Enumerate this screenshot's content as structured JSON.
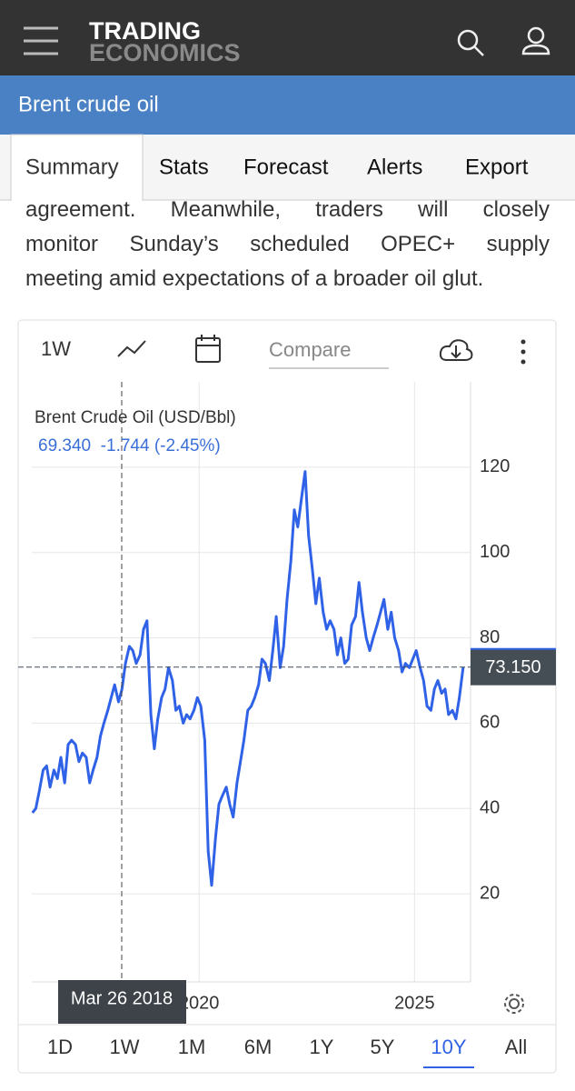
{
  "header": {
    "logo_top": "TRADING",
    "logo_bottom": "ECONOMICS"
  },
  "page_title": "Brent crude oil",
  "tabs": [
    "Summary",
    "Stats",
    "Forecast",
    "Alerts",
    "Export"
  ],
  "active_tab": 0,
  "paragraph_lines": [
    "agreement. Meanwhile, traders will closely",
    "monitor Sunday’s scheduled OPEC+ supply",
    "meeting amid expectations of a broader oil glut."
  ],
  "toolbar": {
    "interval": "1W",
    "compare_placeholder": "Compare"
  },
  "chart_data": {
    "type": "line",
    "quote": "69.340  -1.744 (-2.45%)",
    "x": [
      2016.13,
      2016.21,
      2016.29,
      2016.38,
      2016.46,
      2016.54,
      2016.63,
      2016.71,
      2016.79,
      2016.88,
      2016.96,
      2017.04,
      2017.13,
      2017.21,
      2017.29,
      2017.38,
      2017.46,
      2017.54,
      2017.63,
      2017.71,
      2017.79,
      2017.88,
      2017.96,
      2018.04,
      2018.13,
      2018.21,
      2018.29,
      2018.38,
      2018.46,
      2018.54,
      2018.63,
      2018.71,
      2018.79,
      2018.88,
      2018.96,
      2019.04,
      2019.13,
      2019.21,
      2019.29,
      2019.38,
      2019.46,
      2019.54,
      2019.63,
      2019.71,
      2019.79,
      2019.88,
      2019.96,
      2020.04,
      2020.13,
      2020.21,
      2020.29,
      2020.38,
      2020.46,
      2020.54,
      2020.63,
      2020.71,
      2020.79,
      2020.88,
      2020.96,
      2021.04,
      2021.13,
      2021.21,
      2021.29,
      2021.38,
      2021.46,
      2021.54,
      2021.63,
      2021.71,
      2021.79,
      2021.88,
      2021.96,
      2022.04,
      2022.13,
      2022.21,
      2022.29,
      2022.38,
      2022.46,
      2022.54,
      2022.63,
      2022.71,
      2022.79,
      2022.88,
      2022.96,
      2023.04,
      2023.13,
      2023.21,
      2023.29,
      2023.38,
      2023.46,
      2023.54,
      2023.63,
      2023.71,
      2023.79,
      2023.88,
      2023.96,
      2024.04,
      2024.13,
      2024.21,
      2024.29,
      2024.38,
      2024.46,
      2024.54,
      2024.63,
      2024.71,
      2024.79,
      2024.88,
      2024.96,
      2025.04,
      2025.13,
      2025.21,
      2025.29,
      2025.38,
      2025.46,
      2025.54,
      2025.63,
      2025.71,
      2025.79,
      2025.88,
      2025.96,
      2026.04,
      2026.13
    ],
    "series": [
      {
        "name": "Brent Crude Oil (USD/Bbl)",
        "color": "#2f62e6",
        "values": [
          39,
          40,
          44,
          49,
          50,
          45,
          49,
          47,
          52,
          46,
          55,
          56,
          55,
          51,
          53,
          52,
          46,
          49,
          52,
          57,
          60,
          63,
          66,
          69,
          65,
          68,
          74,
          78,
          77,
          74,
          76,
          82,
          84,
          62,
          54,
          61,
          66,
          68,
          73,
          70,
          63,
          64,
          60,
          62,
          61,
          63,
          66,
          64,
          56,
          30,
          22,
          33,
          41,
          43,
          45,
          41,
          38,
          46,
          51,
          56,
          63,
          64,
          66,
          69,
          75,
          74,
          70,
          77,
          85,
          73,
          78,
          89,
          98,
          110,
          106,
          113,
          119,
          104,
          96,
          88,
          94,
          86,
          82,
          84,
          82,
          76,
          80,
          74,
          75,
          83,
          85,
          93,
          86,
          80,
          77,
          80,
          83,
          86,
          89,
          82,
          86,
          80,
          77,
          72,
          74,
          73,
          75,
          77,
          73,
          70,
          64,
          63,
          68,
          70,
          67,
          68,
          62,
          63,
          61,
          66,
          73.15
        ]
      }
    ],
    "xlim": [
      2015.8,
      2026.3
    ],
    "xticks": [
      2020,
      2025
    ],
    "ylim": [
      0,
      140
    ],
    "yticks": [
      20,
      40,
      60,
      80,
      100,
      120
    ],
    "grid": true,
    "price_marker": {
      "value": 73.15,
      "label": "73.150"
    },
    "crosshair_label": "Mar 26 2018"
  },
  "ranges": [
    "1D",
    "1W",
    "1M",
    "6M",
    "1Y",
    "5Y",
    "10Y",
    "All"
  ],
  "active_range": 6
}
